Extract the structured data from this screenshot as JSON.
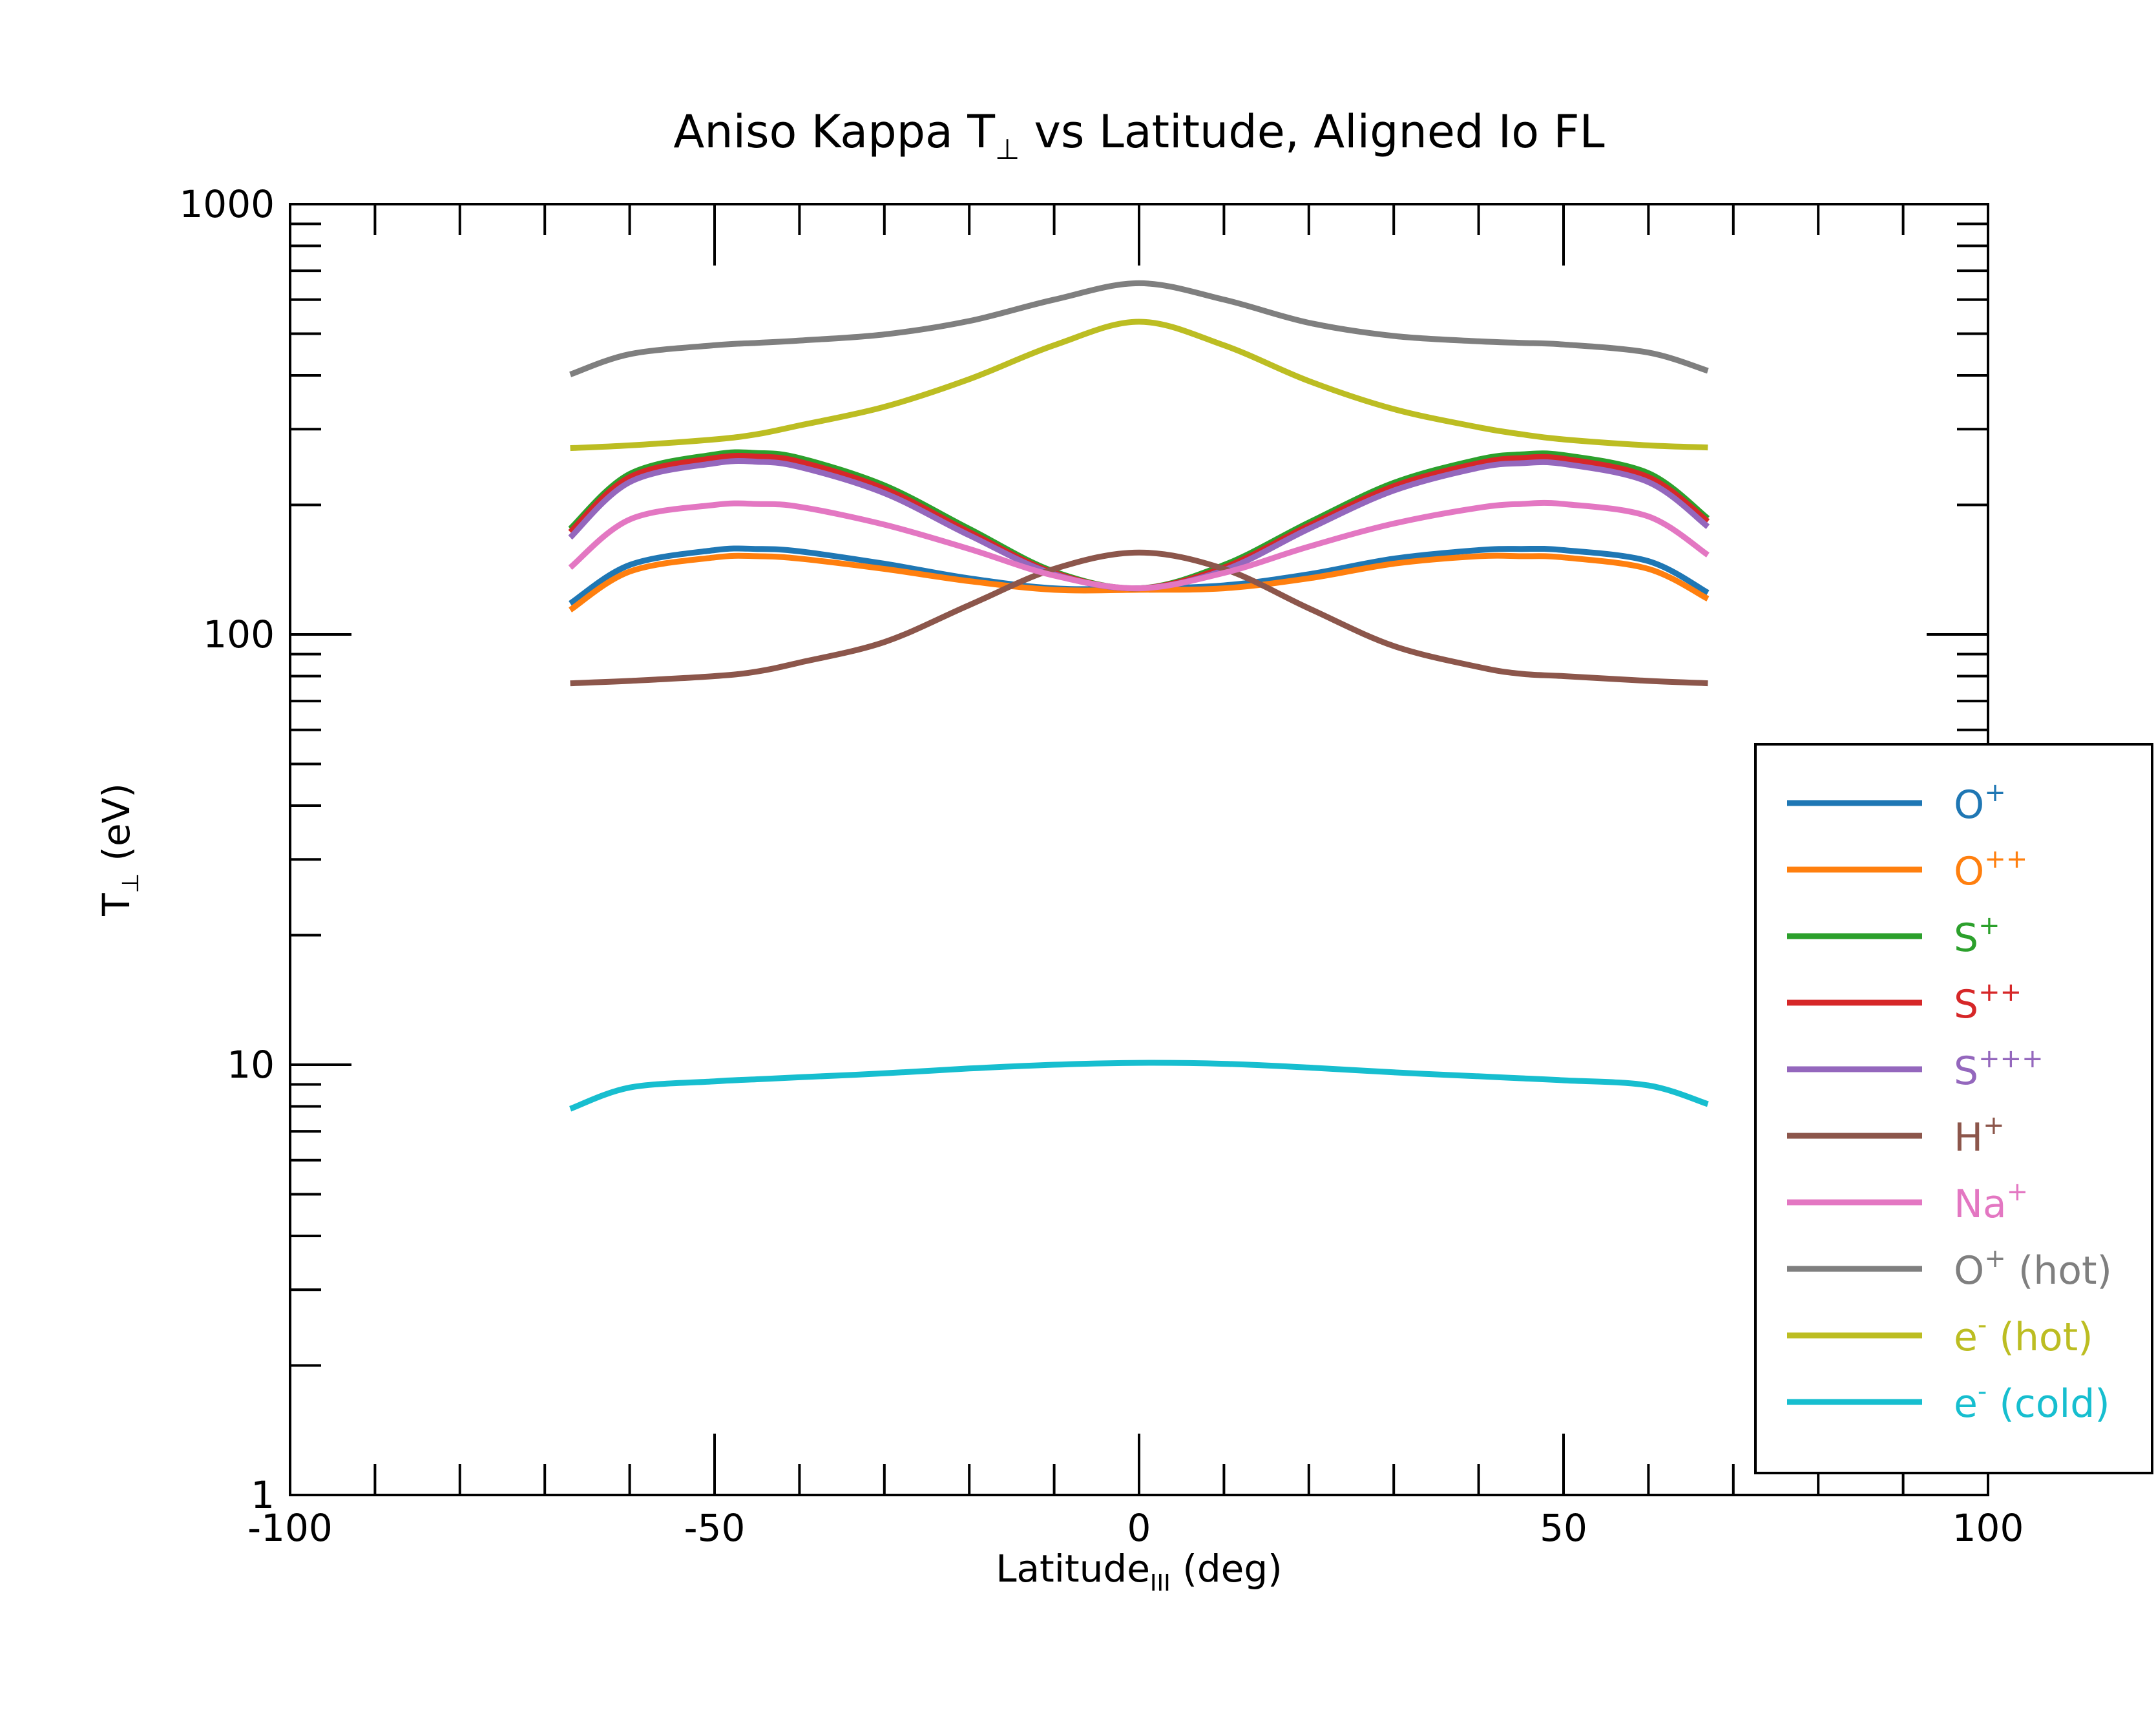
{
  "chart_data": {
    "type": "line",
    "title": {
      "main": "Aniso Kappa T",
      "sub": "⊥",
      "rest": " vs Latitude, Aligned Io FL"
    },
    "xlabel": {
      "main": "Latitude",
      "sub": "III",
      "rest": " (deg)"
    },
    "ylabel": {
      "main": "T",
      "sub": "⊥",
      "rest": " (eV)"
    },
    "xlim": [
      -100,
      100
    ],
    "ylim": [
      1,
      1000
    ],
    "yscale": "log",
    "grid": false,
    "legend_position": "right",
    "x_ticks": [
      {
        "value": -100,
        "label": "-100"
      },
      {
        "value": -50,
        "label": "-50"
      },
      {
        "value": 0,
        "label": "0"
      },
      {
        "value": 50,
        "label": "50"
      },
      {
        "value": 100,
        "label": "100"
      }
    ],
    "y_ticks": [
      {
        "value": 1,
        "label": "1"
      },
      {
        "value": 10,
        "label": "10"
      },
      {
        "value": 100,
        "label": "100"
      },
      {
        "value": 1000,
        "label": "1000"
      }
    ],
    "x": [
      -67,
      -60,
      -50,
      -45,
      -40,
      -30,
      -20,
      -10,
      0,
      10,
      20,
      30,
      40,
      45,
      50,
      60,
      67
    ],
    "series": [
      {
        "name": "O",
        "sup": "+",
        "suffix": "",
        "color": "#1f77b4",
        "values": [
          118,
          145,
          157,
          158,
          156,
          146,
          135,
          128,
          128,
          130,
          138,
          150,
          157,
          158,
          157,
          148,
          125
        ]
      },
      {
        "name": "O",
        "sup": "++",
        "suffix": "",
        "color": "#ff7f0e",
        "values": [
          114,
          140,
          151,
          152,
          150,
          142,
          133,
          127,
          127,
          128,
          135,
          146,
          152,
          152,
          151,
          142,
          121
        ]
      },
      {
        "name": "S",
        "sup": "+",
        "suffix": "",
        "color": "#2ca02c",
        "values": [
          176,
          236,
          262,
          264,
          257,
          222,
          176,
          140,
          128,
          145,
          182,
          225,
          255,
          262,
          261,
          237,
          186
        ]
      },
      {
        "name": "S",
        "sup": "++",
        "suffix": "",
        "color": "#d62728",
        "values": [
          173,
          232,
          257,
          259,
          252,
          218,
          173,
          139,
          128,
          143,
          179,
          221,
          250,
          257,
          256,
          232,
          183
        ]
      },
      {
        "name": "S",
        "sup": "+++",
        "suffix": "",
        "color": "#9467bd",
        "values": [
          168,
          226,
          250,
          252,
          245,
          213,
          170,
          138,
          128,
          141,
          176,
          216,
          244,
          250,
          249,
          226,
          178
        ]
      },
      {
        "name": "H",
        "sup": "+",
        "suffix": "",
        "color": "#8c564b",
        "values": [
          77,
          78,
          80,
          82,
          86,
          96,
          117,
          142,
          155,
          142,
          115,
          94,
          84,
          81,
          80,
          78,
          77
        ]
      },
      {
        "name": "Na",
        "sup": "+",
        "suffix": "",
        "color": "#e377c2",
        "values": [
          143,
          185,
          200,
          201,
          198,
          180,
          158,
          137,
          128,
          139,
          160,
          181,
          197,
          201,
          201,
          188,
          153
        ]
      },
      {
        "name": "O",
        "sup": "+",
        "suffix": " (hot)",
        "color": "#7f7f7f",
        "values": [
          402,
          448,
          470,
          476,
          482,
          498,
          535,
          600,
          655,
          600,
          530,
          494,
          480,
          476,
          472,
          452,
          410
        ]
      },
      {
        "name": "e",
        "sup": "-",
        "suffix": " (hot)",
        "color": "#bcbd22",
        "values": [
          271,
          275,
          284,
          292,
          306,
          338,
          392,
          470,
          533,
          470,
          388,
          334,
          303,
          292,
          284,
          275,
          272
        ]
      },
      {
        "name": "e",
        "sup": "-",
        "suffix": " (cold)",
        "color": "#17becf",
        "values": [
          7.9,
          8.85,
          9.15,
          9.25,
          9.35,
          9.55,
          9.8,
          10.0,
          10.1,
          10.05,
          9.85,
          9.6,
          9.4,
          9.3,
          9.2,
          8.95,
          8.1
        ]
      }
    ]
  }
}
